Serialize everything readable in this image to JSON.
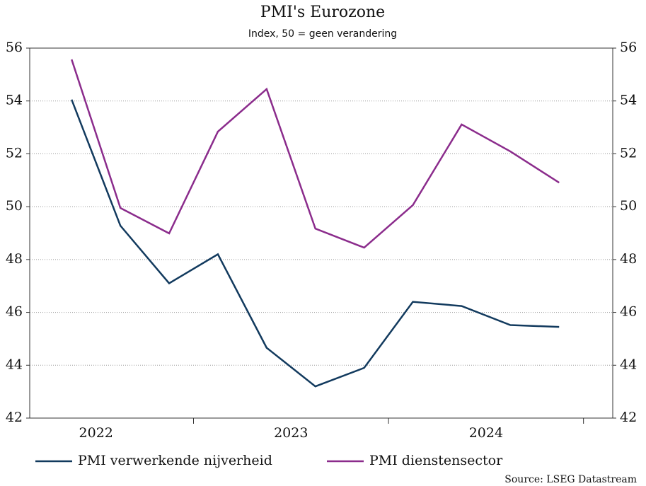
{
  "chart_data": {
    "type": "line",
    "title": "PMI's Eurozone",
    "subtitle": "Index, 50 = geen verandering",
    "source": "Source: LSEG Datastream",
    "x": [
      2022.375,
      2022.625,
      2022.875,
      2023.125,
      2023.375,
      2023.625,
      2023.875,
      2024.125,
      2024.375,
      2024.625,
      2024.875
    ],
    "series": [
      {
        "name": "PMI verwerkende nijverheid",
        "color": "#123a5e",
        "values": [
          54.05,
          49.28,
          47.1,
          48.2,
          44.66,
          43.2,
          43.9,
          46.4,
          46.24,
          45.52,
          45.45
        ]
      },
      {
        "name": "PMI dienstensector",
        "color": "#8b2c8c",
        "values": [
          55.57,
          49.95,
          48.99,
          52.84,
          54.45,
          49.17,
          48.45,
          50.06,
          53.11,
          52.09,
          50.91
        ]
      }
    ],
    "xlim": [
      2022.16,
      2025.15
    ],
    "xticks": [
      {
        "value": 2022.5,
        "label": "2022"
      },
      {
        "value": 2023.5,
        "label": "2023"
      },
      {
        "value": 2024.5,
        "label": "2024"
      }
    ],
    "ylim": [
      42,
      56
    ],
    "yticks": [
      42,
      44,
      46,
      48,
      50,
      52,
      54,
      56
    ],
    "y2lim": [
      42,
      56
    ],
    "y2ticks": [
      42,
      44,
      46,
      48,
      50,
      52,
      54,
      56
    ],
    "grid": true,
    "legend": "bottom"
  }
}
